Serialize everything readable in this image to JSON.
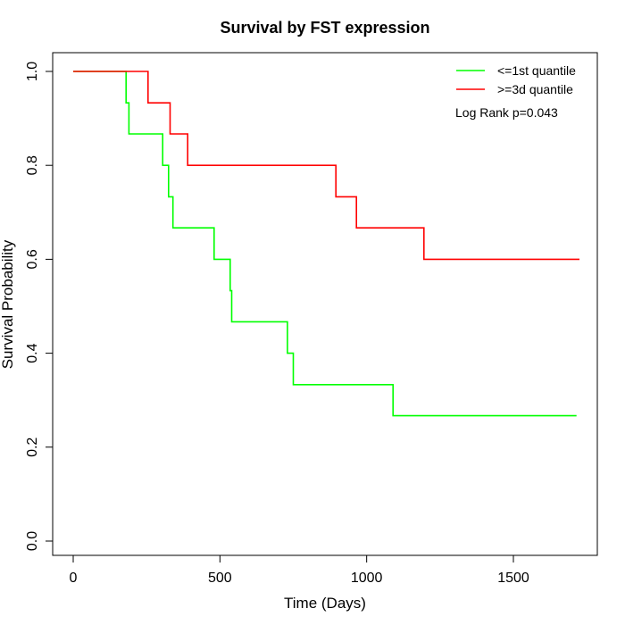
{
  "chart_data": {
    "type": "line",
    "subtype": "kaplan-meier-step",
    "title": "Survival by FST expression",
    "xlabel": "Time (Days)",
    "ylabel": "Survival Probability",
    "xlim": [
      0,
      1800
    ],
    "ylim": [
      0,
      1.0
    ],
    "x_ticks": [
      0,
      500,
      1000,
      1500
    ],
    "x_tick_labels": [
      "0",
      "500",
      "1000",
      "1500"
    ],
    "y_ticks": [
      0.0,
      0.2,
      0.4,
      0.6,
      0.8,
      1.0
    ],
    "y_tick_labels": [
      "0.0",
      "0.2",
      "0.4",
      "0.6",
      "0.8",
      "1.0"
    ],
    "grid": false,
    "legend_position": "top-right",
    "annotation": "Log Rank p=0.043",
    "series": [
      {
        "name": "<=1st quantile",
        "color": "#00ff00",
        "points": [
          [
            0,
            1.0
          ],
          [
            180,
            1.0
          ],
          [
            180,
            0.933
          ],
          [
            190,
            0.933
          ],
          [
            190,
            0.867
          ],
          [
            305,
            0.867
          ],
          [
            305,
            0.8
          ],
          [
            325,
            0.8
          ],
          [
            325,
            0.733
          ],
          [
            340,
            0.733
          ],
          [
            340,
            0.667
          ],
          [
            480,
            0.667
          ],
          [
            480,
            0.6
          ],
          [
            535,
            0.6
          ],
          [
            535,
            0.533
          ],
          [
            540,
            0.533
          ],
          [
            540,
            0.467
          ],
          [
            730,
            0.467
          ],
          [
            730,
            0.4
          ],
          [
            750,
            0.4
          ],
          [
            750,
            0.333
          ],
          [
            1090,
            0.333
          ],
          [
            1090,
            0.267
          ],
          [
            1715,
            0.267
          ]
        ]
      },
      {
        "name": ">=3d quantile",
        "color": "#ff0000",
        "points": [
          [
            0,
            1.0
          ],
          [
            255,
            1.0
          ],
          [
            255,
            0.933
          ],
          [
            330,
            0.933
          ],
          [
            330,
            0.867
          ],
          [
            390,
            0.867
          ],
          [
            390,
            0.8
          ],
          [
            895,
            0.8
          ],
          [
            895,
            0.733
          ],
          [
            965,
            0.733
          ],
          [
            965,
            0.667
          ],
          [
            1195,
            0.667
          ],
          [
            1195,
            0.6
          ],
          [
            1725,
            0.6
          ]
        ]
      }
    ]
  }
}
